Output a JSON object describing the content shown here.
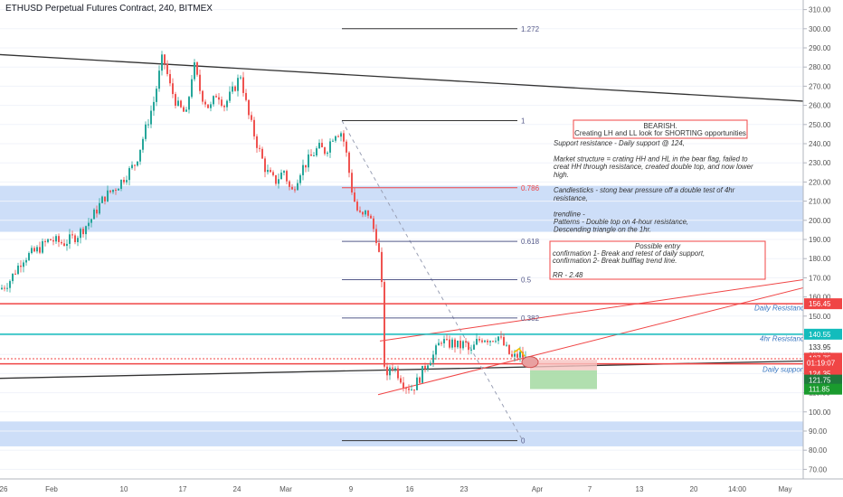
{
  "header": {
    "title": "ETHUSD Perpetual Futures Contract, 240, BITMEX"
  },
  "colors": {
    "up": "#26a69a",
    "down": "#ef5350",
    "zone": "#bcd3f5",
    "resistance": "#f04545",
    "fourhr": "#13bcbc",
    "fib_line": "#555a8a",
    "trend": "#333333",
    "yaxis_text": "#555555"
  },
  "chart_data": {
    "type": "candlestick",
    "ylim": [
      65,
      315
    ],
    "y_ticks": [
      70,
      80,
      90,
      100,
      110,
      120,
      130,
      140,
      150,
      160,
      170,
      180,
      190,
      200,
      210,
      220,
      230,
      240,
      250,
      260,
      270,
      280,
      290,
      300,
      310
    ],
    "y_tick_labels": [
      "70.00",
      "80.00",
      "90.00",
      "100.00",
      "110.00",
      "120.00",
      "130.00",
      "140.00",
      "150.00",
      "160.00",
      "170.00",
      "180.00",
      "190.00",
      "200.00",
      "210.00",
      "220.00",
      "230.00",
      "240.00",
      "250.00",
      "260.00",
      "270.00",
      "280.00",
      "290.00",
      "300.00",
      "310.00"
    ],
    "x_ticks": [
      "26",
      "Feb",
      "10",
      "17",
      "24",
      "Mar",
      "9",
      "16",
      "23",
      "Apr",
      "7",
      "13",
      "20",
      "14:00",
      "May"
    ],
    "x_tick_dates": [
      "2020-01-26",
      "2020-02-01",
      "2020-02-10",
      "2020-02-17",
      "2020-02-24",
      "2020-03-01",
      "2020-03-09",
      "2020-03-16",
      "2020-03-23",
      "2020-04-01",
      "2020-04-07",
      "2020-04-13",
      "2020-04-20",
      "2020-04-27",
      "2020-05-01"
    ],
    "price_path": [
      [
        0,
        164
      ],
      [
        10,
        168
      ],
      [
        25,
        180
      ],
      [
        40,
        184
      ],
      [
        55,
        190
      ],
      [
        70,
        188
      ],
      [
        85,
        192
      ],
      [
        100,
        200
      ],
      [
        115,
        212
      ],
      [
        130,
        218
      ],
      [
        140,
        224
      ],
      [
        150,
        230
      ],
      [
        160,
        246
      ],
      [
        170,
        262
      ],
      [
        180,
        286
      ],
      [
        188,
        270
      ],
      [
        196,
        260
      ],
      [
        206,
        255
      ],
      [
        214,
        282
      ],
      [
        222,
        266
      ],
      [
        232,
        258
      ],
      [
        240,
        267
      ],
      [
        248,
        260
      ],
      [
        258,
        268
      ],
      [
        266,
        276
      ],
      [
        274,
        256
      ],
      [
        284,
        240
      ],
      [
        294,
        226
      ],
      [
        304,
        220
      ],
      [
        314,
        226
      ],
      [
        322,
        214
      ],
      [
        332,
        226
      ],
      [
        342,
        232
      ],
      [
        352,
        238
      ],
      [
        360,
        236
      ],
      [
        370,
        246
      ],
      [
        378,
        246
      ],
      [
        384,
        232
      ],
      [
        388,
        218
      ],
      [
        394,
        206
      ],
      [
        400,
        201
      ],
      [
        406,
        205
      ],
      [
        412,
        197
      ],
      [
        418,
        188
      ],
      [
        422,
        165
      ],
      [
        426,
        112
      ],
      [
        432,
        126
      ],
      [
        440,
        120
      ],
      [
        448,
        114
      ],
      [
        456,
        112
      ],
      [
        464,
        118
      ],
      [
        472,
        126
      ],
      [
        480,
        130
      ],
      [
        488,
        138
      ],
      [
        494,
        135
      ],
      [
        500,
        136
      ],
      [
        508,
        134
      ],
      [
        514,
        136
      ],
      [
        520,
        130
      ],
      [
        526,
        136
      ],
      [
        534,
        139
      ],
      [
        542,
        138
      ],
      [
        550,
        140
      ],
      [
        558,
        134
      ],
      [
        566,
        128
      ],
      [
        576,
        130
      ],
      [
        582,
        127
      ]
    ],
    "levels": [
      {
        "name": "Daily Resistance",
        "value": 156.45,
        "label": "156.45"
      },
      {
        "name": "4hr Resistance",
        "value": 140.55,
        "label": "140.55"
      },
      {
        "name": "Daily support",
        "value": 124.35,
        "label": "124.35"
      }
    ],
    "price_labels": [
      {
        "value": 156.45,
        "text": "156.45"
      },
      {
        "value": 140.55,
        "text": "140.55"
      },
      {
        "value": 133.95,
        "text": "133.95"
      },
      {
        "value": 127.75,
        "text": "127.75"
      },
      {
        "value": 125.75,
        "text": "125.75"
      },
      {
        "value": 124.35,
        "text": "124.35"
      },
      {
        "value": 121.75,
        "text": "121.75"
      },
      {
        "value": 111.85,
        "text": "111.85"
      }
    ],
    "countdown": "01:19:07",
    "fib": [
      {
        "ratio": "1.272",
        "value": 300
      },
      {
        "ratio": "1",
        "value": 252
      },
      {
        "ratio": "0.786",
        "value": 217
      },
      {
        "ratio": "0.618",
        "value": 189
      },
      {
        "ratio": "0.5",
        "value": 169
      },
      {
        "ratio": "0.382",
        "value": 149
      },
      {
        "ratio": "0",
        "value": 85
      }
    ],
    "zones": [
      {
        "from": 194,
        "to": 218
      },
      {
        "from": 82,
        "to": 95
      }
    ]
  },
  "notes": {
    "box1_title": "BEARISH.",
    "box1_line2": "Creating LH and LL look for SHORTING opportunities",
    "lines": [
      "Support resistance - Daily support @ 124,",
      "",
      "Market structure = crating HH and HL in the bear flag, failed to",
      "creat HH through resistance, created double top, and now lower",
      "high.",
      "",
      "Candlesticks - stong bear pressure off a double test of 4hr",
      "resistance,",
      "",
      "trendline -",
      "Patterns - Double top on 4-hour resistance,",
      "Descending triangle on the 1hr.",
      "",
      "Fibs - 1 test for bullfibs 382."
    ],
    "box2_title": "Possible entry",
    "box2_lines": [
      "confirmation 1- Break and retest of daily support,",
      "confirmation 2- Break bullflag trend line.",
      "",
      "RR - 2.48"
    ]
  }
}
